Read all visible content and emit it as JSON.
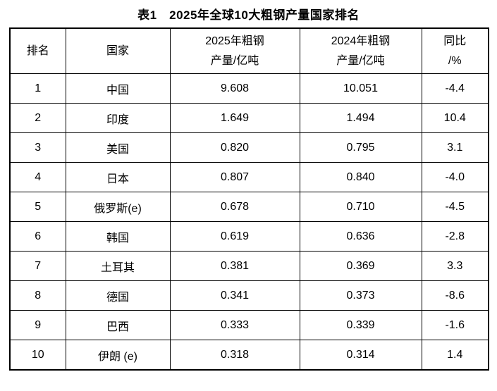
{
  "title": "表1　2025年全球10大粗钢产量国家排名",
  "table": {
    "columns": [
      "排名",
      "国家",
      "2025年粗钢\n产量/亿吨",
      "2024年粗钢\n产量/亿吨",
      "同比\n/%"
    ],
    "rows": [
      {
        "rank": "1",
        "country": "中国",
        "prod_2025": "9.608",
        "prod_2024": "10.051",
        "yoy": "-4.4"
      },
      {
        "rank": "2",
        "country": "印度",
        "prod_2025": "1.649",
        "prod_2024": "1.494",
        "yoy": "10.4"
      },
      {
        "rank": "3",
        "country": "美国",
        "prod_2025": "0.820",
        "prod_2024": "0.795",
        "yoy": "3.1"
      },
      {
        "rank": "4",
        "country": "日本",
        "prod_2025": "0.807",
        "prod_2024": "0.840",
        "yoy": "-4.0"
      },
      {
        "rank": "5",
        "country": "俄罗斯(e)",
        "prod_2025": "0.678",
        "prod_2024": "0.710",
        "yoy": "-4.5"
      },
      {
        "rank": "6",
        "country": "韩国",
        "prod_2025": "0.619",
        "prod_2024": "0.636",
        "yoy": "-2.8"
      },
      {
        "rank": "7",
        "country": "土耳其",
        "prod_2025": "0.381",
        "prod_2024": "0.369",
        "yoy": "3.3"
      },
      {
        "rank": "8",
        "country": "德国",
        "prod_2025": "0.341",
        "prod_2024": "0.373",
        "yoy": "-8.6"
      },
      {
        "rank": "9",
        "country": "巴西",
        "prod_2025": "0.333",
        "prod_2024": "0.339",
        "yoy": "-1.6"
      },
      {
        "rank": "10",
        "country": "伊朗 (e)",
        "prod_2025": "0.318",
        "prod_2024": "0.314",
        "yoy": "1.4"
      }
    ]
  }
}
